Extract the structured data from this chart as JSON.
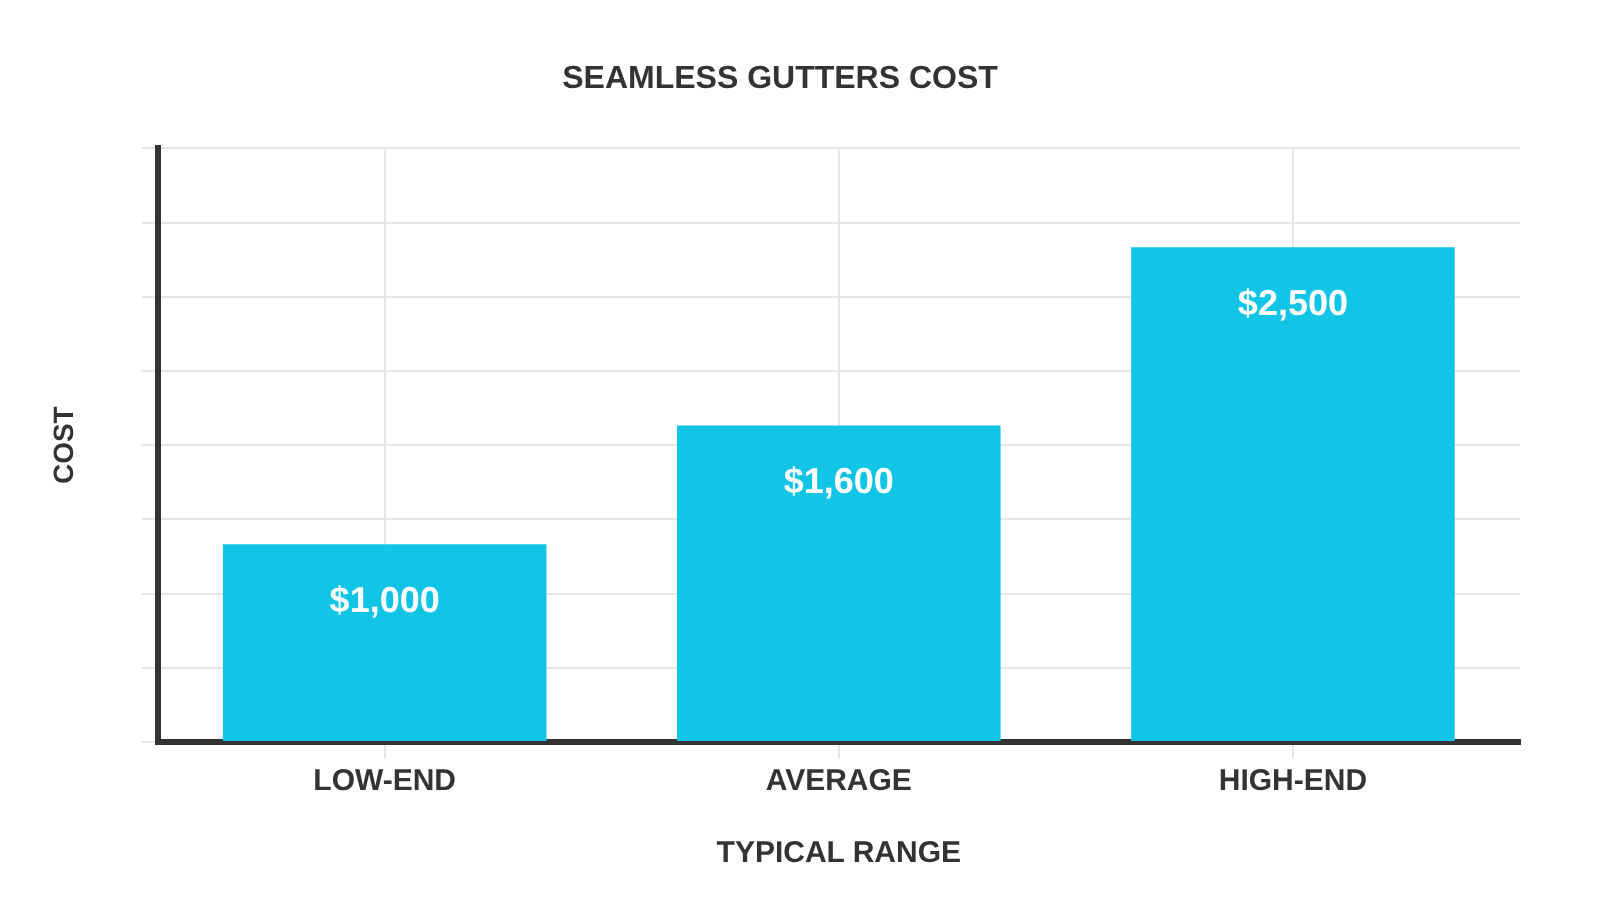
{
  "chart_data": {
    "type": "bar",
    "title": "SEAMLESS GUTTERS COST",
    "xlabel": "TYPICAL RANGE",
    "ylabel": "COST",
    "categories": [
      "LOW-END",
      "AVERAGE",
      "HIGH-END"
    ],
    "values": [
      1000,
      1600,
      2500
    ],
    "value_labels": [
      "$1,000",
      "$1,600",
      "$2,500"
    ],
    "color": "#12c4e6",
    "ylim": [
      0,
      3000
    ],
    "yticks": [
      {
        "value": 0,
        "label": null
      },
      {
        "value": 375,
        "label": null
      },
      {
        "value": 750,
        "label": null
      },
      {
        "value": 1125,
        "label": null
      },
      {
        "value": 1500,
        "label": null
      },
      {
        "value": 1875,
        "label": null
      },
      {
        "value": 2250,
        "label": null
      },
      {
        "value": 2625,
        "label": null
      },
      {
        "value": 3000,
        "label": null
      }
    ],
    "grid": true,
    "legend": false,
    "tick_labels": "x"
  }
}
